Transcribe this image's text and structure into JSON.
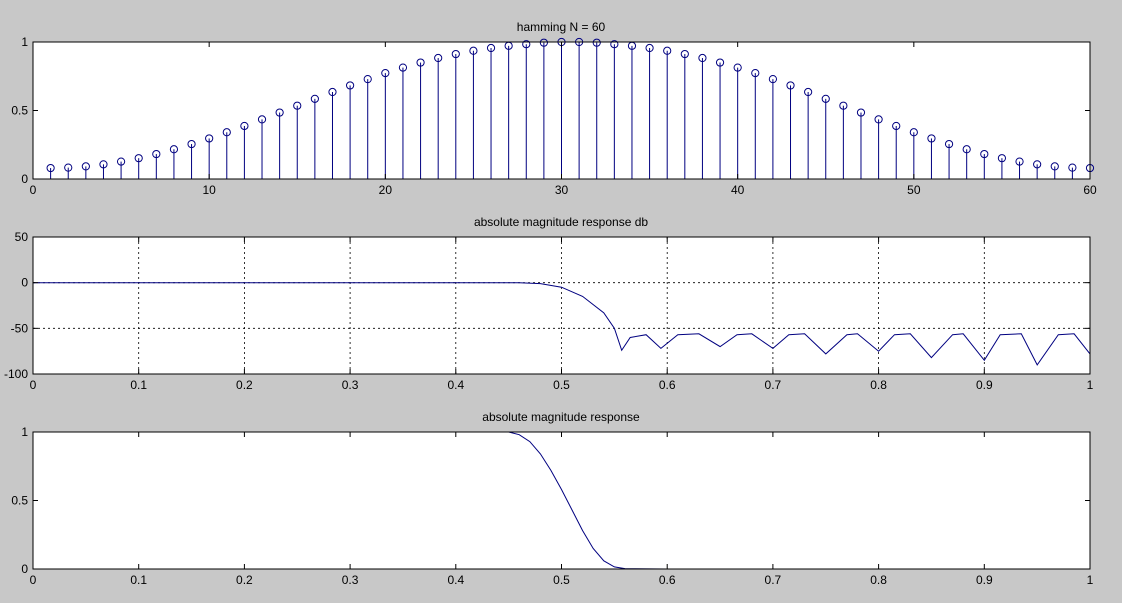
{
  "figure": {
    "background": "#c8c8c8"
  },
  "chart_data": [
    {
      "type": "stem",
      "title": "hamming N = 60",
      "xlim": [
        0,
        60
      ],
      "ylim": [
        0,
        1
      ],
      "xticks": [
        0,
        10,
        20,
        30,
        40,
        50,
        60
      ],
      "yticks": [
        0,
        0.5,
        1
      ],
      "grid": false,
      "color": "#000080",
      "x": [
        1,
        2,
        3,
        4,
        5,
        6,
        7,
        8,
        9,
        10,
        11,
        12,
        13,
        14,
        15,
        16,
        17,
        18,
        19,
        20,
        21,
        22,
        23,
        24,
        25,
        26,
        27,
        28,
        29,
        30,
        31,
        32,
        33,
        34,
        35,
        36,
        37,
        38,
        39,
        40,
        41,
        42,
        43,
        44,
        45,
        46,
        47,
        48,
        49,
        50,
        51,
        52,
        53,
        54,
        55,
        56,
        57,
        58,
        59,
        60
      ],
      "values": [
        0.08,
        0.083,
        0.092,
        0.107,
        0.127,
        0.152,
        0.182,
        0.217,
        0.255,
        0.296,
        0.341,
        0.387,
        0.435,
        0.485,
        0.535,
        0.585,
        0.635,
        0.683,
        0.729,
        0.773,
        0.813,
        0.85,
        0.883,
        0.912,
        0.936,
        0.956,
        0.972,
        0.984,
        0.995,
        1.0,
        1.0,
        0.995,
        0.984,
        0.972,
        0.956,
        0.936,
        0.912,
        0.883,
        0.85,
        0.813,
        0.773,
        0.729,
        0.683,
        0.635,
        0.585,
        0.535,
        0.485,
        0.435,
        0.387,
        0.341,
        0.296,
        0.255,
        0.217,
        0.182,
        0.152,
        0.127,
        0.107,
        0.092,
        0.083,
        0.08
      ]
    },
    {
      "type": "line",
      "title": "absolute magnitude response db",
      "xlim": [
        0,
        1
      ],
      "ylim": [
        -100,
        50
      ],
      "xticks": [
        0,
        0.1,
        0.2,
        0.3,
        0.4,
        0.5,
        0.6,
        0.7,
        0.8,
        0.9,
        1
      ],
      "yticks": [
        -100,
        -50,
        0,
        50
      ],
      "grid": true,
      "color": "#000080",
      "x": [
        0,
        0.1,
        0.2,
        0.3,
        0.4,
        0.46,
        0.48,
        0.5,
        0.52,
        0.54,
        0.55,
        0.557,
        0.565,
        0.58,
        0.594,
        0.61,
        0.63,
        0.65,
        0.666,
        0.68,
        0.7,
        0.715,
        0.73,
        0.75,
        0.77,
        0.78,
        0.8,
        0.815,
        0.83,
        0.85,
        0.87,
        0.88,
        0.9,
        0.915,
        0.935,
        0.95,
        0.97,
        0.985,
        1.0
      ],
      "values": [
        0,
        0,
        0,
        0,
        0,
        0,
        -1,
        -5,
        -15,
        -33,
        -50,
        -74,
        -60,
        -57,
        -72,
        -57,
        -56,
        -70,
        -57,
        -56,
        -72,
        -57,
        -56,
        -78,
        -57,
        -56,
        -75,
        -57,
        -56,
        -82,
        -57,
        -56,
        -85,
        -57,
        -56,
        -90,
        -57,
        -56,
        -78
      ]
    },
    {
      "type": "line",
      "title": "absolute magnitude response",
      "xlim": [
        0,
        1
      ],
      "ylim": [
        0,
        1
      ],
      "xticks": [
        0,
        0.1,
        0.2,
        0.3,
        0.4,
        0.5,
        0.6,
        0.7,
        0.8,
        0.9,
        1
      ],
      "yticks": [
        0,
        0.5,
        1
      ],
      "grid": false,
      "color": "#000080",
      "x": [
        0,
        0.1,
        0.2,
        0.3,
        0.4,
        0.44,
        0.45,
        0.46,
        0.47,
        0.48,
        0.49,
        0.5,
        0.51,
        0.52,
        0.53,
        0.54,
        0.55,
        0.56,
        0.6,
        0.7,
        0.8,
        0.9,
        1.0
      ],
      "values": [
        1,
        1,
        1,
        1,
        1,
        1,
        1.0,
        0.98,
        0.93,
        0.84,
        0.72,
        0.58,
        0.43,
        0.28,
        0.15,
        0.06,
        0.015,
        0.003,
        0,
        0,
        0,
        0,
        0
      ]
    }
  ]
}
